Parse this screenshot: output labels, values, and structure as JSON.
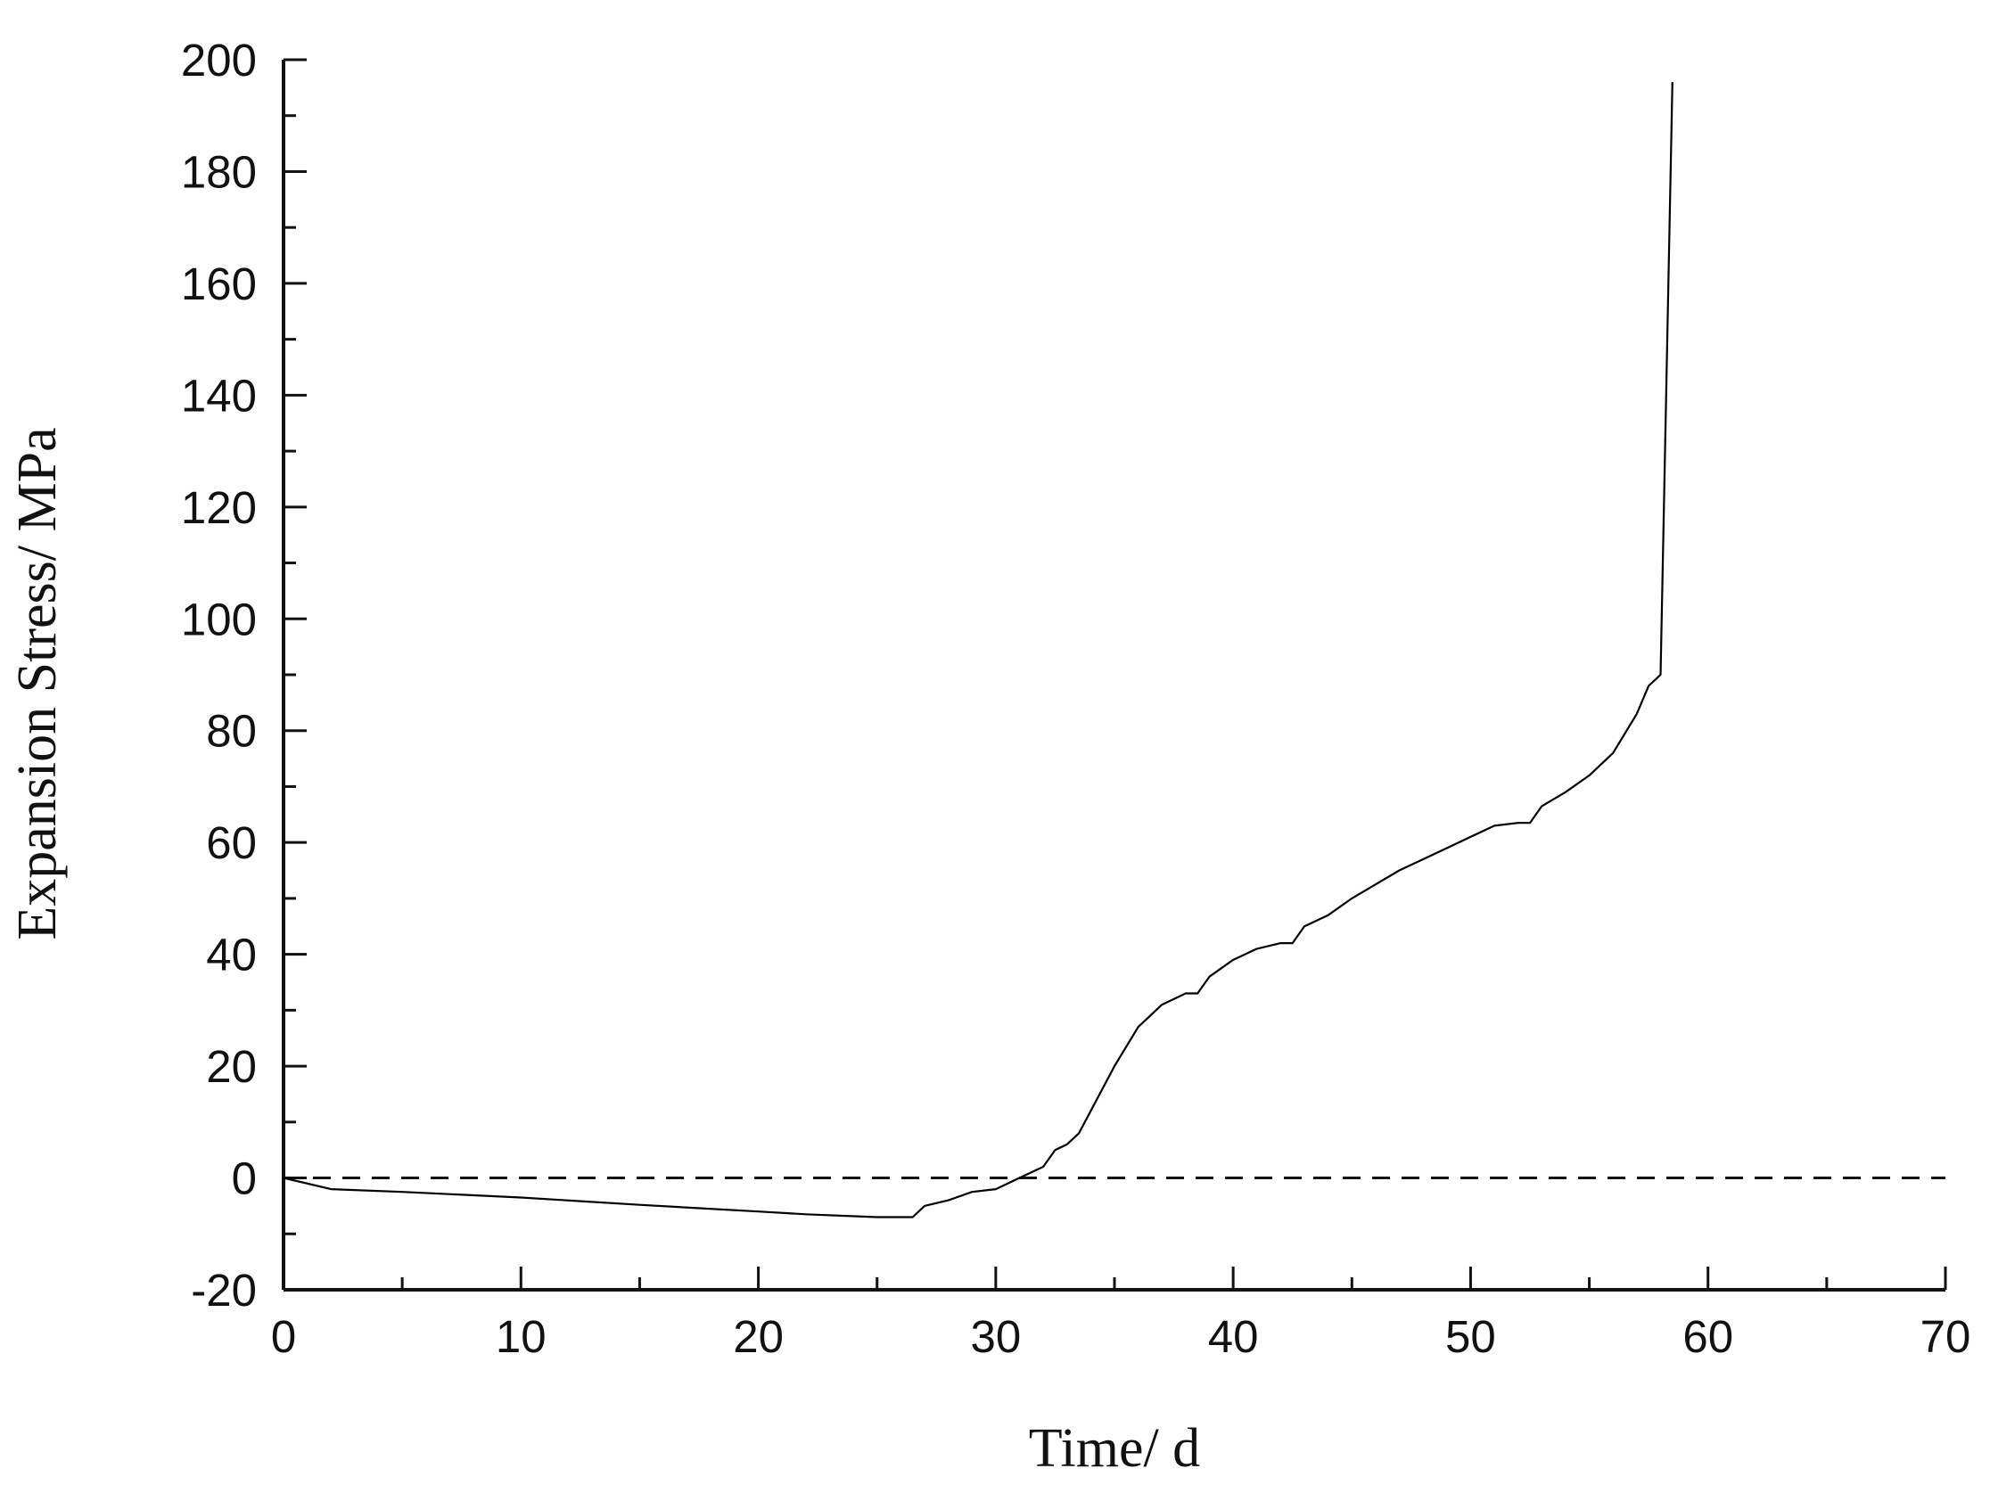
{
  "chart_data": {
    "type": "line",
    "title": "",
    "xlabel": "Time/ d",
    "ylabel": "Expansion Stress/ MPa",
    "xlim": [
      0,
      70
    ],
    "ylim": [
      -20,
      200
    ],
    "x_ticks": [
      0,
      10,
      20,
      30,
      40,
      50,
      60,
      70
    ],
    "y_ticks": [
      -20,
      0,
      20,
      40,
      60,
      80,
      100,
      120,
      140,
      160,
      180,
      200
    ],
    "x_tick_labels": [
      "0",
      "10",
      "20",
      "30",
      "40",
      "50",
      "60",
      "70"
    ],
    "y_tick_labels": [
      "-20",
      "0",
      "20",
      "40",
      "60",
      "80",
      "100",
      "120",
      "140",
      "160",
      "180",
      "200"
    ],
    "grid": false,
    "legend": "none",
    "reference_line": {
      "y": 0,
      "style": "dashed"
    },
    "series": [
      {
        "color": "#000000",
        "x": [
          0,
          2,
          5,
          10,
          15,
          20,
          22,
          25,
          26.5,
          27,
          28,
          29,
          30,
          31,
          32,
          32.5,
          33,
          33.5,
          34,
          35,
          36,
          37,
          38,
          38.5,
          39,
          40,
          41,
          42,
          42.5,
          43,
          44,
          45,
          46,
          47,
          48,
          49,
          50,
          51,
          52,
          52.5,
          53,
          54,
          55,
          56,
          57,
          57.5,
          58,
          58.5
        ],
        "y": [
          0,
          -2,
          -2.5,
          -3.5,
          -4.8,
          -6,
          -6.5,
          -7,
          -7,
          -5,
          -4,
          -2.5,
          -2,
          0,
          2,
          5,
          6,
          8,
          12,
          20,
          27,
          31,
          33,
          33,
          36,
          39,
          41,
          42,
          42,
          45,
          47,
          50,
          52.5,
          55,
          57,
          59,
          61,
          63,
          63.5,
          63.5,
          66.5,
          69,
          72,
          76,
          83,
          88,
          90,
          196
        ]
      }
    ]
  }
}
